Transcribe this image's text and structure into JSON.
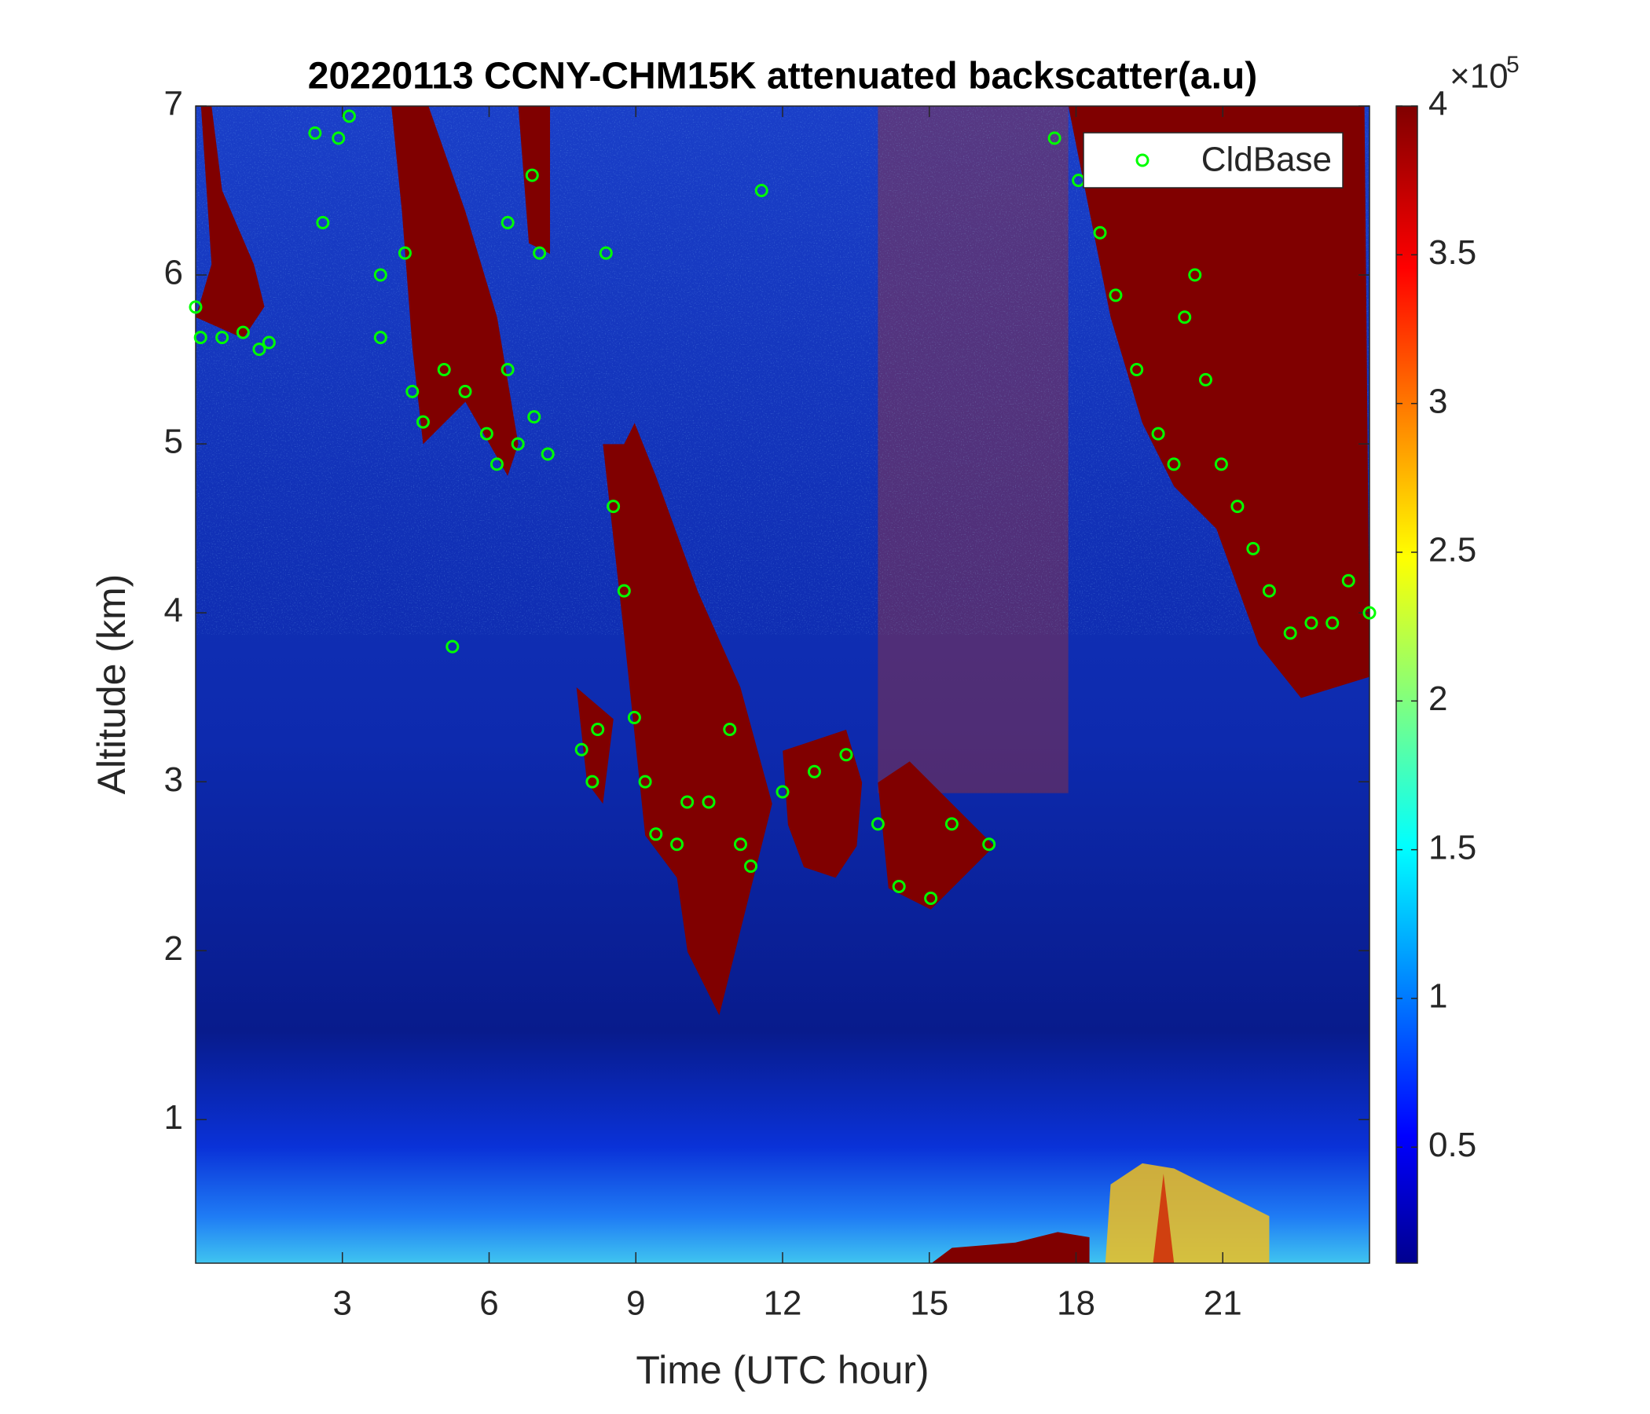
{
  "chart_data": {
    "type": "scatter",
    "title": "20220113 CCNY-CHM15K attenuated backscatter(a.u)",
    "xlabel": "Time (UTC hour)",
    "ylabel": "Altitude (km)",
    "xlim": [
      0,
      24
    ],
    "xticks": [
      3,
      6,
      9,
      12,
      15,
      18,
      21
    ],
    "ylim": [
      0.15,
      7
    ],
    "yticks": [
      1,
      2,
      3,
      4,
      5,
      6,
      7
    ],
    "legend": "northeast",
    "series": [
      {
        "name": "CldBase",
        "color": "#00ff00",
        "x": [
          0,
          0.1,
          0.54,
          0.97,
          1.3,
          1.5,
          2.44,
          2.6,
          2.92,
          3.14,
          3.78,
          3.78,
          4.28,
          4.43,
          4.65,
          5.08,
          5.51,
          5.95,
          6.16,
          6.38,
          6.59,
          6.92,
          7.2,
          6.38,
          7.03,
          6.88,
          5.25,
          8.39,
          8.54,
          8.76,
          8.97,
          7.89,
          8.22,
          8.11,
          9.19,
          9.41,
          9.84,
          10.05,
          10.49,
          10.92,
          11.14,
          11.35,
          11.57,
          12.0,
          12.65,
          13.3,
          13.95,
          14.38,
          15.03,
          15.46,
          16.22,
          17.56,
          18.05,
          18.49,
          18.81,
          19.24,
          19.68,
          20.0,
          20.22,
          20.43,
          20.65,
          20.97,
          21.3,
          21.62,
          21.95,
          22.38,
          22.81,
          23.24,
          23.57,
          24.0
        ],
        "values": [
          5.81,
          5.63,
          5.63,
          5.66,
          5.56,
          5.6,
          6.84,
          6.31,
          6.81,
          6.94,
          6.0,
          5.63,
          6.13,
          5.31,
          5.13,
          5.44,
          5.31,
          5.06,
          4.88,
          5.44,
          5.0,
          5.16,
          4.94,
          6.31,
          6.13,
          6.59,
          3.8,
          6.13,
          4.63,
          4.13,
          3.38,
          3.19,
          3.31,
          3.0,
          3.0,
          2.69,
          2.63,
          2.88,
          2.88,
          3.31,
          2.63,
          2.5,
          6.5,
          2.94,
          3.06,
          3.16,
          2.75,
          2.38,
          2.31,
          2.75,
          2.63,
          6.81,
          6.56,
          6.25,
          5.88,
          5.44,
          5.06,
          4.88,
          5.75,
          6.0,
          5.38,
          4.88,
          4.63,
          4.38,
          4.13,
          3.88,
          3.94,
          3.94,
          4.19,
          4.0
        ]
      }
    ],
    "colorbar": {
      "clim": [
        0.11,
        4
      ],
      "ticks": [
        0.5,
        1,
        1.5,
        2,
        2.5,
        3,
        3.5,
        4
      ],
      "multiplier": "×10",
      "exponent": "5"
    }
  }
}
